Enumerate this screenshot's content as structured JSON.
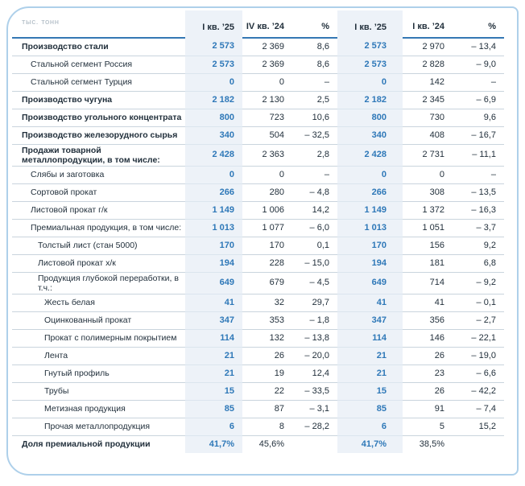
{
  "colors": {
    "accent_blue": "#2e78b8",
    "header_underline": "#3478b4",
    "highlight_column_bg": "#edf2f8",
    "card_border": "#aed0ea",
    "text_dark": "#22303c",
    "row_separator": "#c9d4dd",
    "unit_label_muted": "#a9b6c0"
  },
  "chart_data": {
    "type": "table",
    "unit": "тыс. тонн",
    "columns": [
      "I кв. ’25",
      "IV кв. ’24",
      "%",
      "I кв. ’25",
      "I кв. ’24",
      "%"
    ],
    "highlighted_columns": [
      0,
      3
    ],
    "rows": [
      {
        "label": "Производство стали",
        "indent": 0,
        "bold": true,
        "values": [
          "2 573",
          "2 369",
          "8,6",
          "2 573",
          "2 970",
          "– 13,4"
        ]
      },
      {
        "label": "Стальной сегмент Россия",
        "indent": 1,
        "bold": false,
        "values": [
          "2 573",
          "2 369",
          "8,6",
          "2 573",
          "2 828",
          "– 9,0"
        ]
      },
      {
        "label": "Стальной сегмент Турция",
        "indent": 1,
        "bold": false,
        "values": [
          "0",
          "0",
          "–",
          "0",
          "142",
          "–"
        ]
      },
      {
        "label": "Производство чугуна",
        "indent": 0,
        "bold": true,
        "values": [
          "2 182",
          "2 130",
          "2,5",
          "2 182",
          "2 345",
          "– 6,9"
        ]
      },
      {
        "label": "Производство угольного концентрата",
        "indent": 0,
        "bold": true,
        "values": [
          "800",
          "723",
          "10,6",
          "800",
          "730",
          "9,6"
        ]
      },
      {
        "label": "Производство железорудного сырья",
        "indent": 0,
        "bold": true,
        "values": [
          "340",
          "504",
          "– 32,5",
          "340",
          "408",
          "– 16,7"
        ]
      },
      {
        "label": "Продажи товарной металлопродукции, в том числе:",
        "indent": 0,
        "bold": true,
        "values": [
          "2 428",
          "2 363",
          "2,8",
          "2 428",
          "2 731",
          "– 11,1"
        ]
      },
      {
        "label": "Слябы и заготовка",
        "indent": 1,
        "bold": false,
        "values": [
          "0",
          "0",
          "–",
          "0",
          "0",
          "–"
        ]
      },
      {
        "label": "Сортовой прокат",
        "indent": 1,
        "bold": false,
        "values": [
          "266",
          "280",
          "– 4,8",
          "266",
          "308",
          "– 13,5"
        ]
      },
      {
        "label": "Листовой прокат г/к",
        "indent": 1,
        "bold": false,
        "values": [
          "1 149",
          "1 006",
          "14,2",
          "1 149",
          "1 372",
          "– 16,3"
        ]
      },
      {
        "label": "Премиальная продукция, в том числе:",
        "indent": 1,
        "bold": false,
        "values": [
          "1 013",
          "1 077",
          "– 6,0",
          "1 013",
          "1 051",
          "– 3,7"
        ]
      },
      {
        "label": "Толстый лист (стан 5000)",
        "indent": 2,
        "bold": false,
        "values": [
          "170",
          "170",
          "0,1",
          "170",
          "156",
          "9,2"
        ]
      },
      {
        "label": "Листовой прокат х/к",
        "indent": 2,
        "bold": false,
        "values": [
          "194",
          "228",
          "– 15,0",
          "194",
          "181",
          "6,8"
        ]
      },
      {
        "label": "Продукция глубокой переработки, в т.ч.:",
        "indent": 2,
        "bold": false,
        "values": [
          "649",
          "679",
          "– 4,5",
          "649",
          "714",
          "– 9,2"
        ]
      },
      {
        "label": "Жесть белая",
        "indent": 3,
        "bold": false,
        "values": [
          "41",
          "32",
          "29,7",
          "41",
          "41",
          "– 0,1"
        ]
      },
      {
        "label": "Оцинкованный прокат",
        "indent": 3,
        "bold": false,
        "values": [
          "347",
          "353",
          "– 1,8",
          "347",
          "356",
          "– 2,7"
        ]
      },
      {
        "label": "Прокат с полимерным покрытием",
        "indent": 3,
        "bold": false,
        "values": [
          "114",
          "132",
          "– 13,8",
          "114",
          "146",
          "– 22,1"
        ]
      },
      {
        "label": "Лента",
        "indent": 3,
        "bold": false,
        "values": [
          "21",
          "26",
          "– 20,0",
          "21",
          "26",
          "– 19,0"
        ]
      },
      {
        "label": "Гнутый профиль",
        "indent": 3,
        "bold": false,
        "values": [
          "21",
          "19",
          "12,4",
          "21",
          "23",
          "– 6,6"
        ]
      },
      {
        "label": "Трубы",
        "indent": 3,
        "bold": false,
        "values": [
          "15",
          "22",
          "– 33,5",
          "15",
          "26",
          "– 42,2"
        ]
      },
      {
        "label": "Метизная продукция",
        "indent": 3,
        "bold": false,
        "values": [
          "85",
          "87",
          "– 3,1",
          "85",
          "91",
          "– 7,4"
        ]
      },
      {
        "label": "Прочая металлопродукция",
        "indent": 3,
        "bold": false,
        "values": [
          "6",
          "8",
          "– 28,2",
          "6",
          "5",
          "15,2"
        ]
      },
      {
        "label": "Доля премиальной продукции",
        "indent": 0,
        "bold": true,
        "values": [
          "41,7%",
          "45,6%",
          "",
          "41,7%",
          "38,5%",
          ""
        ]
      }
    ]
  }
}
